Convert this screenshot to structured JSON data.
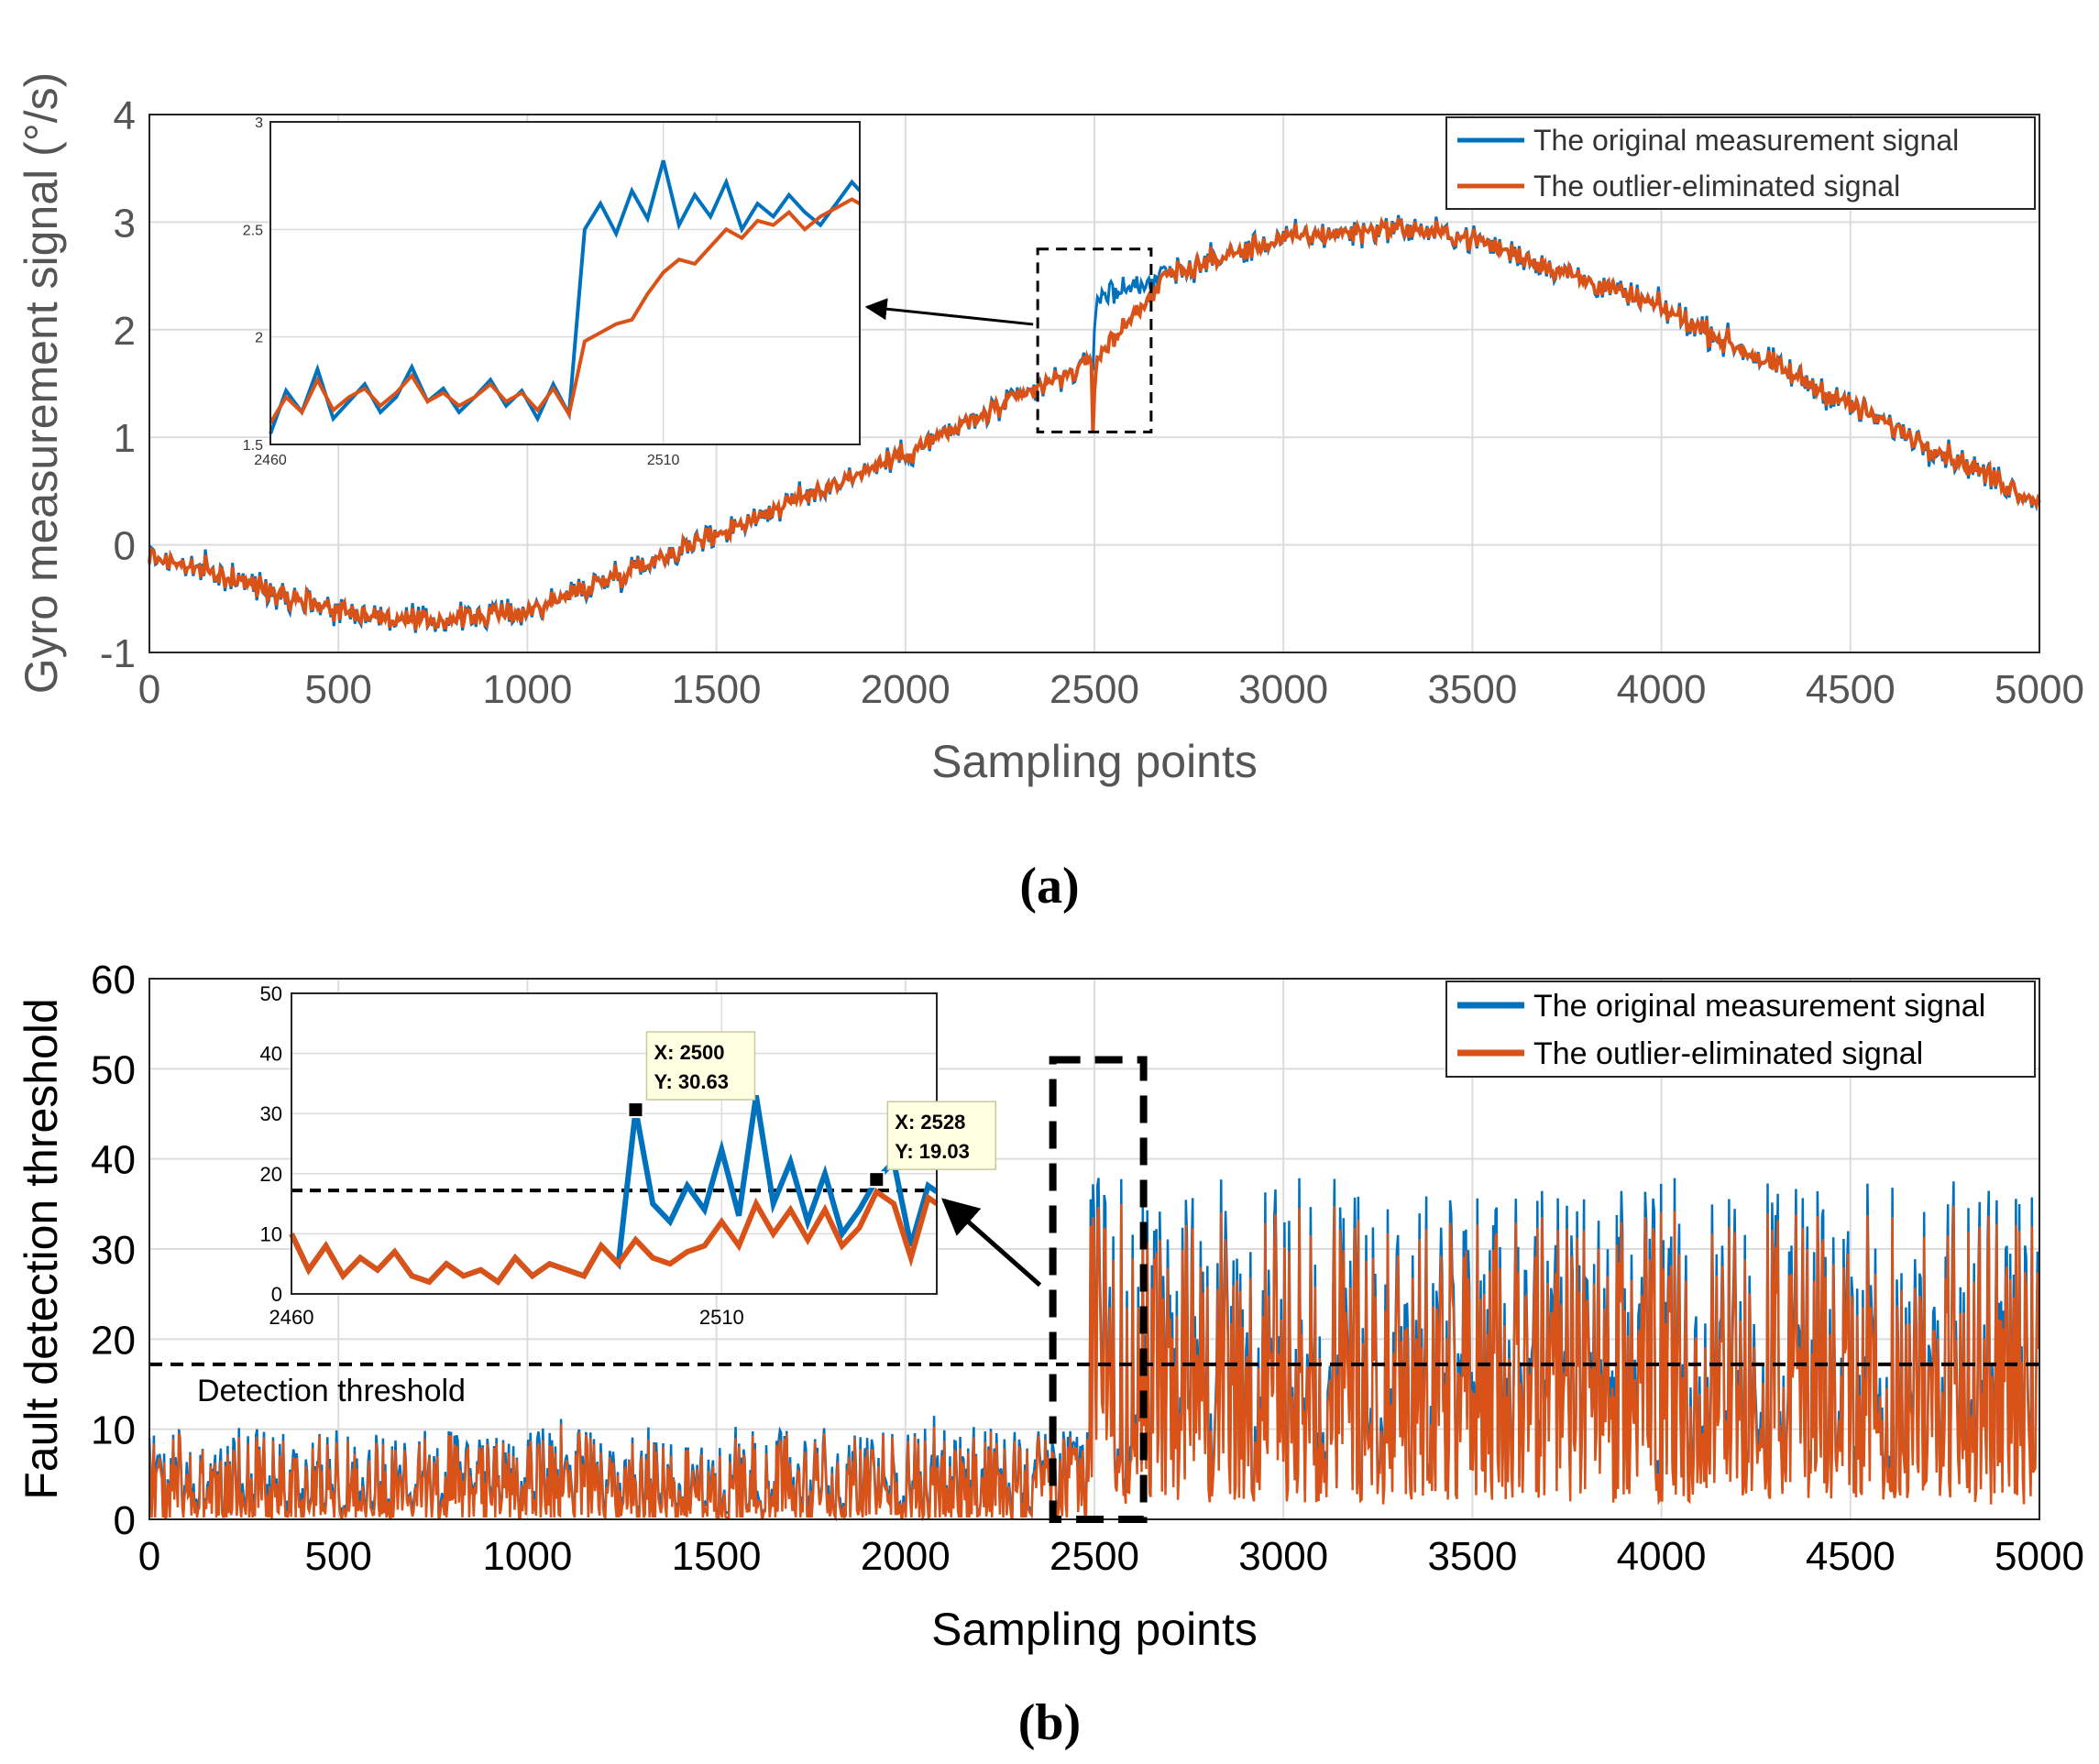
{
  "colors": {
    "original": "#0072bd",
    "eliminated": "#d95319",
    "grid": "#dcdcdc",
    "axis": "#262626",
    "datatip_bg": "#ffffe1"
  },
  "chart_data": [
    {
      "id": "a",
      "type": "line",
      "caption": "(a)",
      "xlabel": "Sampling points",
      "ylabel": "Gyro measurement signal (°/s)",
      "xlim": [
        0,
        5000
      ],
      "ylim": [
        -1,
        4
      ],
      "xticks": [
        0,
        500,
        1000,
        1500,
        2000,
        2500,
        3000,
        3500,
        4000,
        4500,
        5000
      ],
      "yticks": [
        -1,
        0,
        1,
        2,
        3,
        4
      ],
      "grid": true,
      "legend_position": "top-right",
      "series": [
        {
          "name": "The original measurement signal",
          "color_key": "original"
        },
        {
          "name": "The outlier-eliminated signal",
          "color_key": "eliminated"
        }
      ],
      "trend": {
        "description_points_x": [
          0,
          500,
          700,
          1000,
          1500,
          2000,
          2495,
          2505,
          3000,
          3300,
          3500,
          4000,
          4500,
          5000
        ],
        "original_y": [
          -0.1,
          -0.6,
          -0.72,
          -0.62,
          0.1,
          0.85,
          1.7,
          2.3,
          2.85,
          2.95,
          2.85,
          2.2,
          1.3,
          0.4
        ],
        "eliminated_y": [
          -0.1,
          -0.6,
          -0.72,
          -0.62,
          0.1,
          0.85,
          1.7,
          2.3,
          2.85,
          2.95,
          2.85,
          2.2,
          1.3,
          0.4
        ],
        "noise": 0.1
      },
      "highlight_box": {
        "x": [
          2350,
          2650
        ],
        "y": [
          1.05,
          2.75
        ]
      },
      "inset": {
        "xlim": [
          2460,
          2535
        ],
        "ylim": [
          1.5,
          3
        ],
        "xticks": [
          2460,
          2510
        ],
        "yticks": [
          1.5,
          2,
          2.5,
          3
        ],
        "x": [
          2460,
          2462,
          2464,
          2466,
          2468,
          2470,
          2472,
          2474,
          2476,
          2478,
          2480,
          2482,
          2484,
          2486,
          2488,
          2490,
          2492,
          2494,
          2496,
          2498,
          2500,
          2502,
          2504,
          2506,
          2508,
          2510,
          2512,
          2514,
          2516,
          2518,
          2520,
          2522,
          2524,
          2526,
          2528,
          2530,
          2532,
          2534,
          2535
        ],
        "original_y": [
          1.55,
          1.75,
          1.65,
          1.85,
          1.62,
          1.7,
          1.78,
          1.65,
          1.72,
          1.86,
          1.7,
          1.76,
          1.65,
          1.72,
          1.8,
          1.68,
          1.75,
          1.62,
          1.78,
          1.64,
          2.5,
          2.62,
          2.48,
          2.68,
          2.55,
          2.82,
          2.52,
          2.66,
          2.56,
          2.72,
          2.5,
          2.62,
          2.56,
          2.66,
          2.58,
          2.52,
          2.62,
          2.72,
          2.68
        ],
        "eliminated_y": [
          1.6,
          1.72,
          1.65,
          1.8,
          1.66,
          1.72,
          1.76,
          1.68,
          1.74,
          1.82,
          1.7,
          1.74,
          1.68,
          1.72,
          1.78,
          1.7,
          1.74,
          1.66,
          1.76,
          1.64,
          1.98,
          2.02,
          2.06,
          2.08,
          2.2,
          2.3,
          2.36,
          2.34,
          2.42,
          2.5,
          2.46,
          2.54,
          2.52,
          2.58,
          2.5,
          2.56,
          2.6,
          2.64,
          2.62
        ]
      }
    },
    {
      "id": "b",
      "type": "line",
      "caption": "(b)",
      "xlabel": "Sampling points",
      "ylabel": "Fault detection threshold",
      "xlim": [
        0,
        5000
      ],
      "ylim": [
        0,
        60
      ],
      "xticks": [
        0,
        500,
        1000,
        1500,
        2000,
        2500,
        3000,
        3500,
        4000,
        4500,
        5000
      ],
      "yticks": [
        0,
        10,
        20,
        30,
        40,
        50,
        60
      ],
      "grid": true,
      "legend_position": "top-right",
      "threshold": {
        "value": 17.2,
        "label": "Detection threshold"
      },
      "series": [
        {
          "name": "The original measurement signal",
          "color_key": "original"
        },
        {
          "name": "The outlier-eliminated signal",
          "color_key": "eliminated"
        }
      ],
      "trend": {
        "before_fault": {
          "x_range": [
            0,
            2480
          ],
          "typical_low": 0.5,
          "typical_high": 12
        },
        "after_fault": {
          "x_range": [
            2480,
            5000
          ],
          "typical_low": 3,
          "typical_high": 38
        }
      },
      "highlight_box": {
        "x": [
          2390,
          2630
        ],
        "y": [
          0,
          51
        ]
      },
      "inset": {
        "xlim": [
          2460,
          2535
        ],
        "ylim": [
          0,
          50
        ],
        "xticks": [
          2460,
          2510
        ],
        "yticks": [
          0,
          10,
          20,
          30,
          40,
          50
        ],
        "threshold": 17.2,
        "x": [
          2460,
          2462,
          2464,
          2466,
          2468,
          2470,
          2472,
          2474,
          2476,
          2478,
          2480,
          2482,
          2484,
          2486,
          2488,
          2490,
          2492,
          2494,
          2496,
          2498,
          2500,
          2502,
          2504,
          2506,
          2508,
          2510,
          2512,
          2514,
          2516,
          2518,
          2520,
          2522,
          2524,
          2526,
          2528,
          2530,
          2532,
          2534,
          2535
        ],
        "original_y": [
          10,
          4,
          8,
          3,
          6,
          4,
          7,
          3,
          2,
          5,
          3,
          4,
          2,
          6,
          3,
          5,
          4,
          3,
          8,
          5,
          30.63,
          15,
          12,
          18,
          14,
          24,
          13,
          33,
          15,
          22,
          12,
          20,
          10,
          14,
          19.03,
          22,
          8,
          18,
          17
        ],
        "eliminated_y": [
          10,
          4,
          8,
          3,
          6,
          4,
          7,
          3,
          2,
          5,
          3,
          4,
          2,
          6,
          3,
          5,
          4,
          3,
          8,
          5,
          9,
          6,
          5,
          7,
          8,
          12,
          8,
          15,
          10,
          14,
          9,
          14,
          8,
          11,
          17,
          15,
          6,
          16,
          15
        ],
        "datatips": [
          {
            "x_label": "X: 2500",
            "y_label": "Y: 30.63",
            "x": 2500,
            "y": 30.63
          },
          {
            "x_label": "X: 2528",
            "y_label": "Y: 19.03",
            "x": 2528,
            "y": 19.03
          }
        ]
      }
    }
  ]
}
